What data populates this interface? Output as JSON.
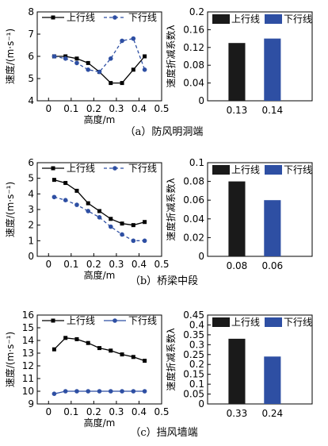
{
  "chart_data": [
    {
      "type": "line",
      "xlabel": "高度/m",
      "ylabel": "速度/(m·s⁻¹)",
      "xlim": [
        -0.05,
        0.5
      ],
      "ylim": [
        4,
        8
      ],
      "xticks": [
        0,
        0.1,
        0.2,
        0.3,
        0.4,
        0.5
      ],
      "yticks": [
        4,
        5,
        6,
        7,
        8
      ],
      "x": [
        0.025,
        0.075,
        0.125,
        0.175,
        0.225,
        0.275,
        0.325,
        0.375,
        0.425
      ],
      "series": [
        {
          "name": "上行线",
          "marker": "square",
          "line": "solid",
          "color": "#000000",
          "values": [
            6.0,
            6.0,
            5.9,
            5.7,
            5.3,
            4.8,
            4.8,
            5.4,
            6.0
          ]
        },
        {
          "name": "下行线",
          "marker": "circle",
          "line": "dashed",
          "color": "#2e4fa3",
          "values": [
            6.0,
            5.9,
            5.7,
            5.4,
            5.3,
            5.9,
            6.7,
            6.8,
            5.4
          ]
        }
      ],
      "legend": "top-center"
    },
    {
      "type": "bar",
      "ylabel": "速度折减系数λ",
      "ylim": [
        0,
        0.2
      ],
      "yticks": [
        0,
        0.04,
        0.08,
        0.12,
        0.16,
        0.2
      ],
      "categories": [
        "0.13",
        "0.14"
      ],
      "series": [
        {
          "name": "上行线",
          "color": "#1a1a1a",
          "value": 0.13
        },
        {
          "name": "下行线",
          "color": "#2e4fa3",
          "value": 0.14
        }
      ],
      "legend": "top"
    },
    {
      "type": "line",
      "xlabel": "高度/m",
      "ylabel": "速度/(m·s⁻¹)",
      "xlim": [
        -0.05,
        0.5
      ],
      "ylim": [
        0,
        6
      ],
      "xticks": [
        0,
        0.1,
        0.2,
        0.3,
        0.4,
        0.5
      ],
      "yticks": [
        0,
        1,
        2,
        3,
        4,
        5,
        6
      ],
      "x": [
        0.025,
        0.075,
        0.125,
        0.175,
        0.225,
        0.275,
        0.325,
        0.375,
        0.425
      ],
      "series": [
        {
          "name": "上行线",
          "marker": "square",
          "line": "solid",
          "color": "#000000",
          "values": [
            4.9,
            4.7,
            4.2,
            3.4,
            2.9,
            2.4,
            2.1,
            2.0,
            2.2
          ]
        },
        {
          "name": "下行线",
          "marker": "circle",
          "line": "dashed",
          "color": "#2e4fa3",
          "values": [
            3.8,
            3.6,
            3.3,
            2.9,
            2.5,
            1.9,
            1.4,
            1.0,
            1.0
          ]
        }
      ],
      "legend": "top"
    },
    {
      "type": "bar",
      "ylabel": "速度折减系数λ",
      "ylim": [
        0,
        0.1
      ],
      "yticks": [
        0,
        0.02,
        0.04,
        0.06,
        0.08,
        0.1
      ],
      "categories": [
        "0.08",
        "0.06"
      ],
      "series": [
        {
          "name": "上行线",
          "color": "#1a1a1a",
          "value": 0.08
        },
        {
          "name": "下行线",
          "color": "#2e4fa3",
          "value": 0.06
        }
      ],
      "legend": "top"
    },
    {
      "type": "line",
      "xlabel": "高度/m",
      "ylabel": "速度/(m·s⁻¹)",
      "xlim": [
        -0.05,
        0.5
      ],
      "ylim": [
        9,
        16
      ],
      "xticks": [
        0,
        0.1,
        0.2,
        0.3,
        0.4,
        0.5
      ],
      "yticks": [
        9,
        10,
        11,
        12,
        13,
        14,
        15,
        16
      ],
      "x": [
        0.025,
        0.075,
        0.125,
        0.175,
        0.225,
        0.275,
        0.325,
        0.375,
        0.425
      ],
      "series": [
        {
          "name": "上行线",
          "marker": "square",
          "line": "solid",
          "color": "#000000",
          "values": [
            13.3,
            14.2,
            14.1,
            13.8,
            13.4,
            13.2,
            12.9,
            12.7,
            12.4
          ]
        },
        {
          "name": "下行线",
          "marker": "circle",
          "line": "solid",
          "color": "#2e4fa3",
          "values": [
            9.8,
            10.0,
            10.0,
            10.0,
            10.0,
            10.0,
            10.0,
            10.0,
            10.0
          ]
        }
      ],
      "legend": "top"
    },
    {
      "type": "bar",
      "ylabel": "速度折减系数λ",
      "ylim": [
        0,
        0.45
      ],
      "yticks": [
        0,
        0.05,
        0.1,
        0.15,
        0.2,
        0.25,
        0.3,
        0.35,
        0.4,
        0.45
      ],
      "categories": [
        "0.33",
        "0.24"
      ],
      "series": [
        {
          "name": "上行线",
          "color": "#1a1a1a",
          "value": 0.33
        },
        {
          "name": "下行线",
          "color": "#2e4fa3",
          "value": 0.24
        }
      ],
      "legend": "top"
    }
  ],
  "captions": [
    "（a）防风明洞端",
    "（b）桥梁中段",
    "（c）挡风墙端"
  ]
}
